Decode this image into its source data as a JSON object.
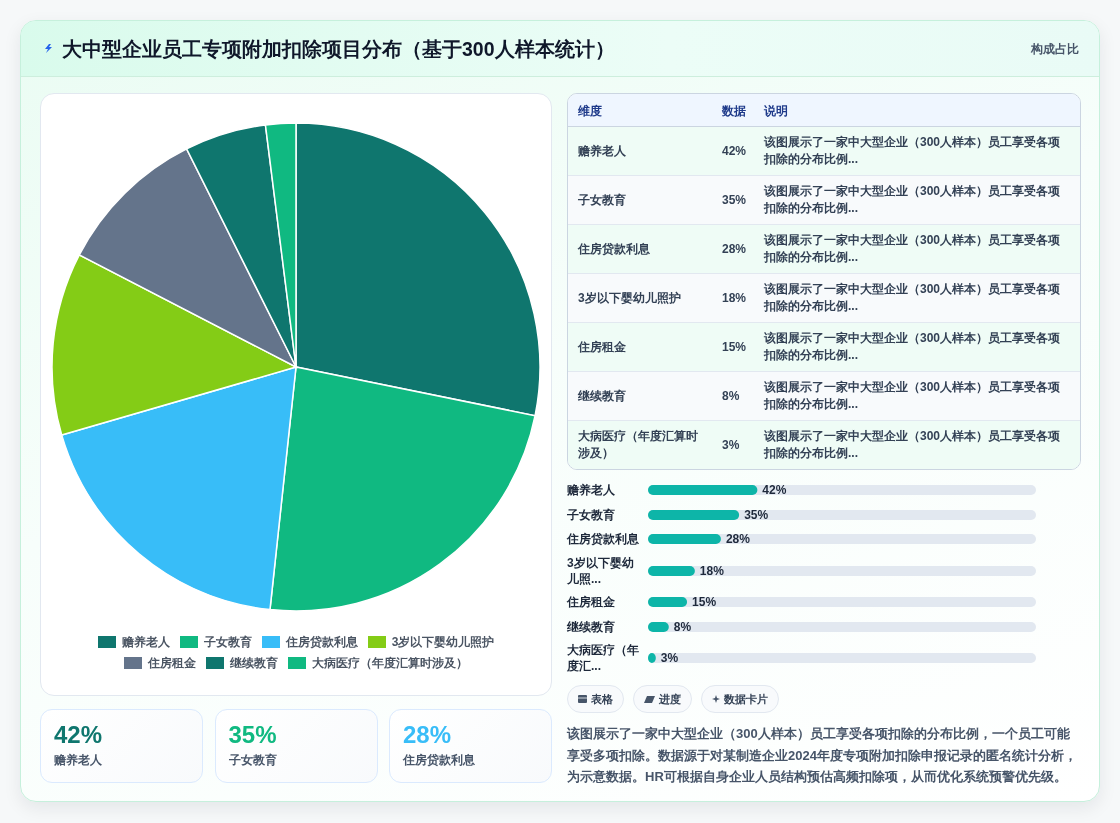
{
  "chart_data": [
    {
      "type": "other",
      "title": "大中型企业员工专项附加扣除项目分布（基于300人样本统计）",
      "subtitle": "构成占比"
    },
    {
      "type": "pie",
      "categories": [
        "赡养老人",
        "子女教育",
        "住房贷款利息",
        "3岁以下婴幼儿照护",
        "住房租金",
        "继续教育",
        "大病医疗（年度汇算时涉及）"
      ],
      "values": [
        28.2,
        23.5,
        18.8,
        12.1,
        10.0,
        5.4,
        2.0
      ],
      "colors": [
        "#0f766e",
        "#10b981",
        "#38bdf8",
        "#84cc16",
        "#64748b",
        "#0f766e",
        "#10b981"
      ],
      "legend": "bottom"
    },
    {
      "type": "other",
      "annotations": [
        "维度",
        "数据",
        "说明",
        "赡养老人",
        "42%",
        "该图展示了一家中大型企业（300人样本）员工享受各项扣除的分布比例...",
        "子女教育",
        "35%",
        "该图展示了一家中大型企业（300人样本）员工享受各项扣除的分布比例...",
        "住房贷款利息",
        "28%",
        "该图展示了一家中大型企业（300人样本）员工享受各项扣除的分布比例...",
        "3岁以下婴幼儿照护",
        "18%",
        "该图展示了一家中大型企业（300人样本）员工享受各项扣除的分布比例...",
        "住房租金",
        "15%",
        "该图展示了一家中大型企业（300人样本）员工享受各项扣除的分布比例...",
        "继续教育",
        "8%",
        "该图展示了一家中大型企业（300人样本）员工享受各项扣除的分布比例...",
        "大病医疗（年度汇算时涉及）",
        "3%",
        "该图展示了一家中大型企业（300人样本）员工享受各项扣除的分布比例..."
      ]
    },
    {
      "type": "bar",
      "orientation": "horizontal",
      "categories": [
        "赡养老人",
        "子女教育",
        "住房贷款利息",
        "3岁以下婴幼儿照...",
        "住房租金",
        "继续教育",
        "大病医疗（年度汇..."
      ],
      "values": [
        42,
        35,
        28,
        18,
        15,
        8,
        3
      ],
      "value_labels": [
        "42%",
        "35%",
        "28%",
        "18%",
        "15%",
        "8%",
        "3%"
      ],
      "color": "#0db5a8",
      "tick_labels": "y"
    },
    {
      "type": "other",
      "annotations": [
        "42%",
        "赡养老人",
        "35%",
        "子女教育",
        "28%",
        "住房贷款利息"
      ],
      "colors": [
        "#0f766e",
        "#10b981",
        "#38bdf8"
      ]
    },
    {
      "type": "other",
      "annotations": [
        "表格",
        "进度",
        "数据卡片",
        "该图展示了一家中大型企业（300人样本）员工享受各项扣除的分布比例，一个员工可能享受多项扣除。数据源于对某制造企业2024年度专项附加扣除申报记录的匿名统计分析，为示意数据。HR可根据自身企业人员结构预估高频扣除项，从而优化系统预警优先级。"
      ]
    }
  ]
}
